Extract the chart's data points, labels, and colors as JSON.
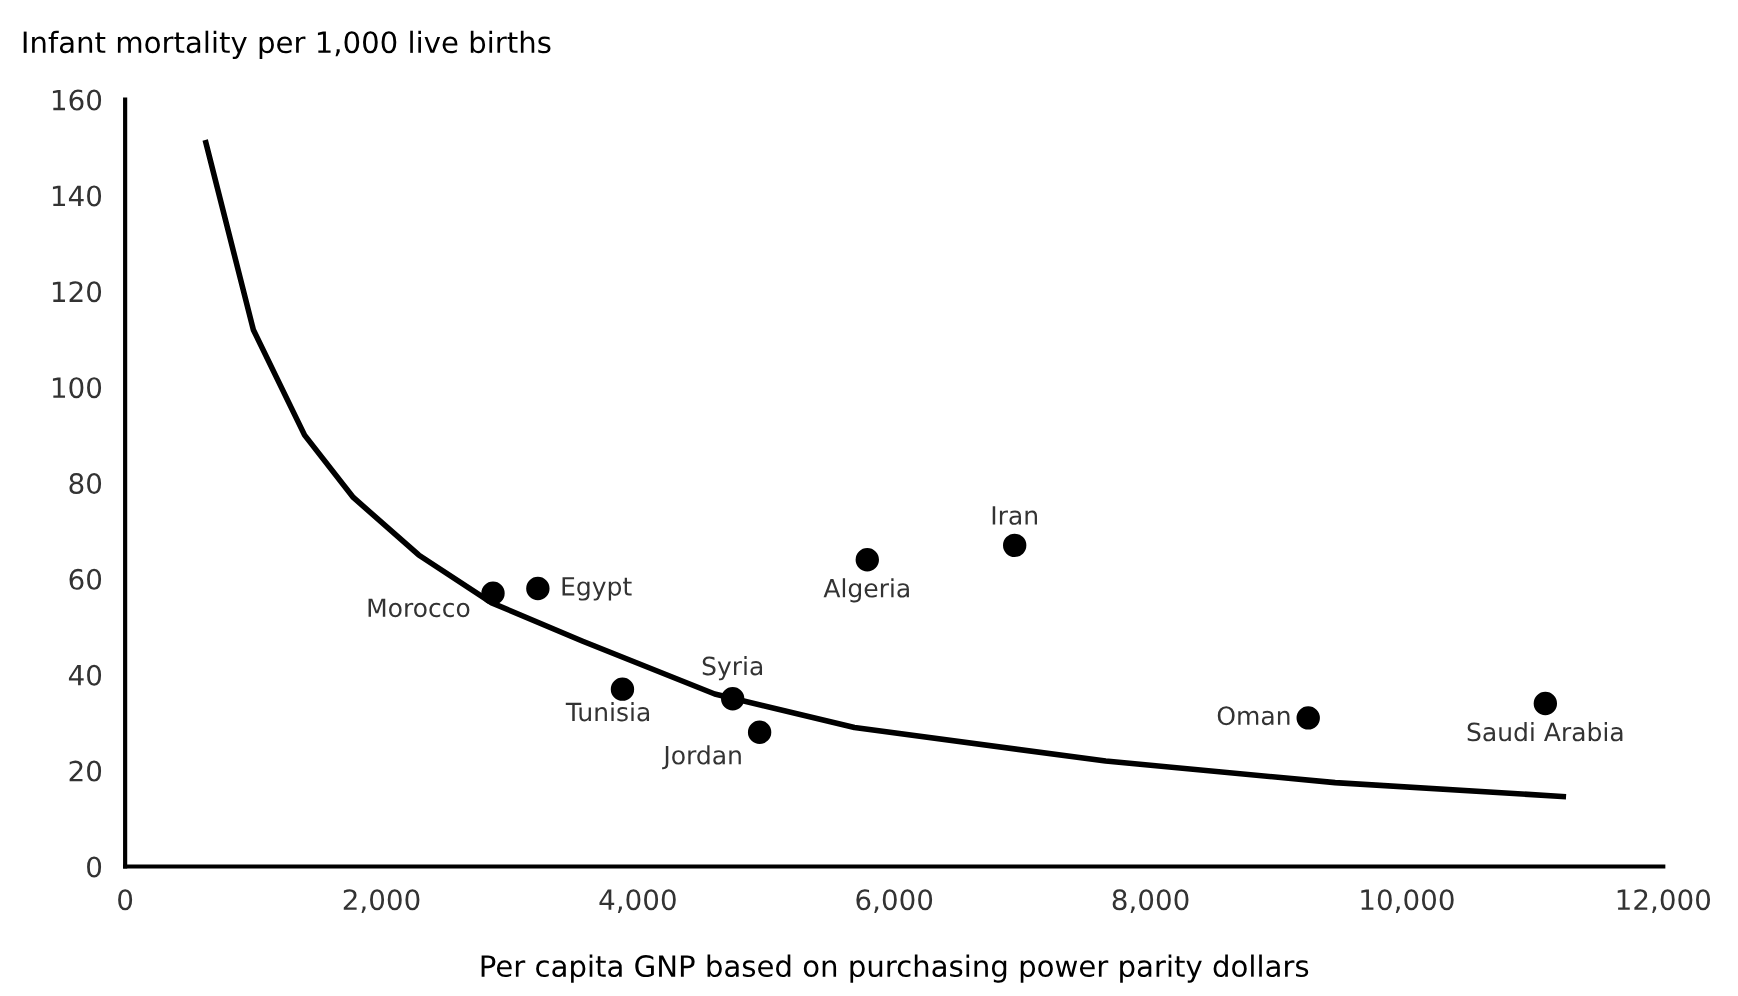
{
  "chart_data": {
    "type": "scatter",
    "ylabel": "Infant mortality per 1,000 live births",
    "xlabel": "Per capita GNP based on purchasing power parity dollars",
    "xlim": [
      0,
      12000
    ],
    "ylim": [
      0,
      160
    ],
    "xticks": [
      0,
      {
        "value": 2000,
        "label": "2,000"
      },
      {
        "value": 4000,
        "label": "4,000"
      },
      {
        "value": 6000,
        "label": "6,000"
      },
      {
        "value": 8000,
        "label": "8,000"
      },
      {
        "value": 10000,
        "label": "10,000"
      },
      {
        "value": 12000,
        "label": "12,000"
      }
    ],
    "yticks": [
      0,
      20,
      40,
      60,
      80,
      100,
      120,
      140,
      160
    ],
    "grid": false,
    "legend": false,
    "series": [
      {
        "color": "#000000",
        "marker": "circle",
        "x": [
          2870,
          3220,
          3880,
          4740,
          4950,
          5790,
          6940,
          9230,
          11080
        ],
        "values": [
          57,
          58,
          37,
          35,
          28,
          64,
          67,
          31,
          34
        ]
      },
      {
        "type": "line",
        "color": "#000000",
        "marker": "none",
        "line_style": "solid",
        "x": [
          630,
          1000,
          1400,
          1780,
          2290,
          2860,
          3570,
          4600,
          5690,
          7650,
          9440,
          11220
        ],
        "values": [
          151,
          112,
          90,
          77,
          65,
          55,
          47,
          36,
          29,
          22,
          17.5,
          14.6
        ]
      }
    ],
    "annotations": [
      {
        "text": "Morocco",
        "x": 2870,
        "y": 57
      },
      {
        "text": "Egypt",
        "x": 3220,
        "y": 58
      },
      {
        "text": "Tunisia",
        "x": 3880,
        "y": 37
      },
      {
        "text": "Syria",
        "x": 4740,
        "y": 35
      },
      {
        "text": "Jordan",
        "x": 4950,
        "y": 28
      },
      {
        "text": "Algeria",
        "x": 5790,
        "y": 64
      },
      {
        "text": "Iran",
        "x": 6940,
        "y": 67
      },
      {
        "text": "Oman",
        "x": 9230,
        "y": 31
      },
      {
        "text": "Saudi Arabia",
        "x": 11080,
        "y": 34
      }
    ]
  }
}
